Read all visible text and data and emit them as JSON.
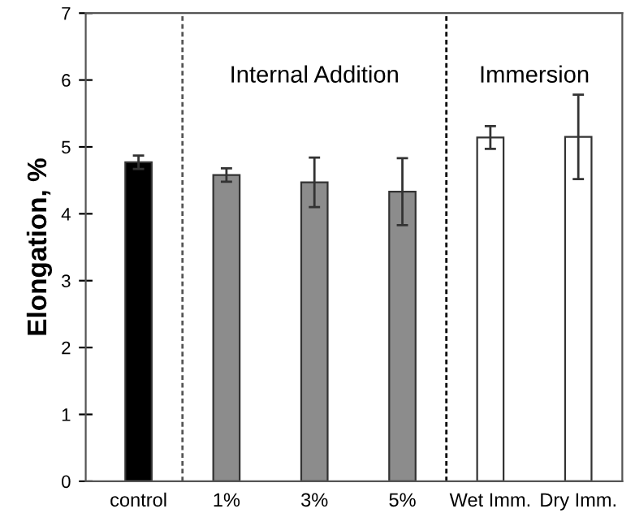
{
  "chart_data": {
    "type": "bar",
    "ylabel": "Elongation, %",
    "categories": [
      "control",
      "1%",
      "3%",
      "5%",
      "Wet Imm.",
      "Dry Imm."
    ],
    "values": [
      4.77,
      4.58,
      4.47,
      4.33,
      5.14,
      5.15
    ],
    "errors": [
      0.1,
      0.1,
      0.37,
      0.5,
      0.17,
      0.63
    ],
    "colors": [
      "#000000",
      "#8c8c8c",
      "#8c8c8c",
      "#8c8c8c",
      "#ffffff",
      "#ffffff"
    ],
    "ylim": [
      0,
      7
    ],
    "yticks": [
      0,
      1,
      2,
      3,
      4,
      5,
      6,
      7
    ],
    "grid": false,
    "legend": false,
    "annotations": [
      "Internal Addition",
      "Immersion"
    ]
  }
}
